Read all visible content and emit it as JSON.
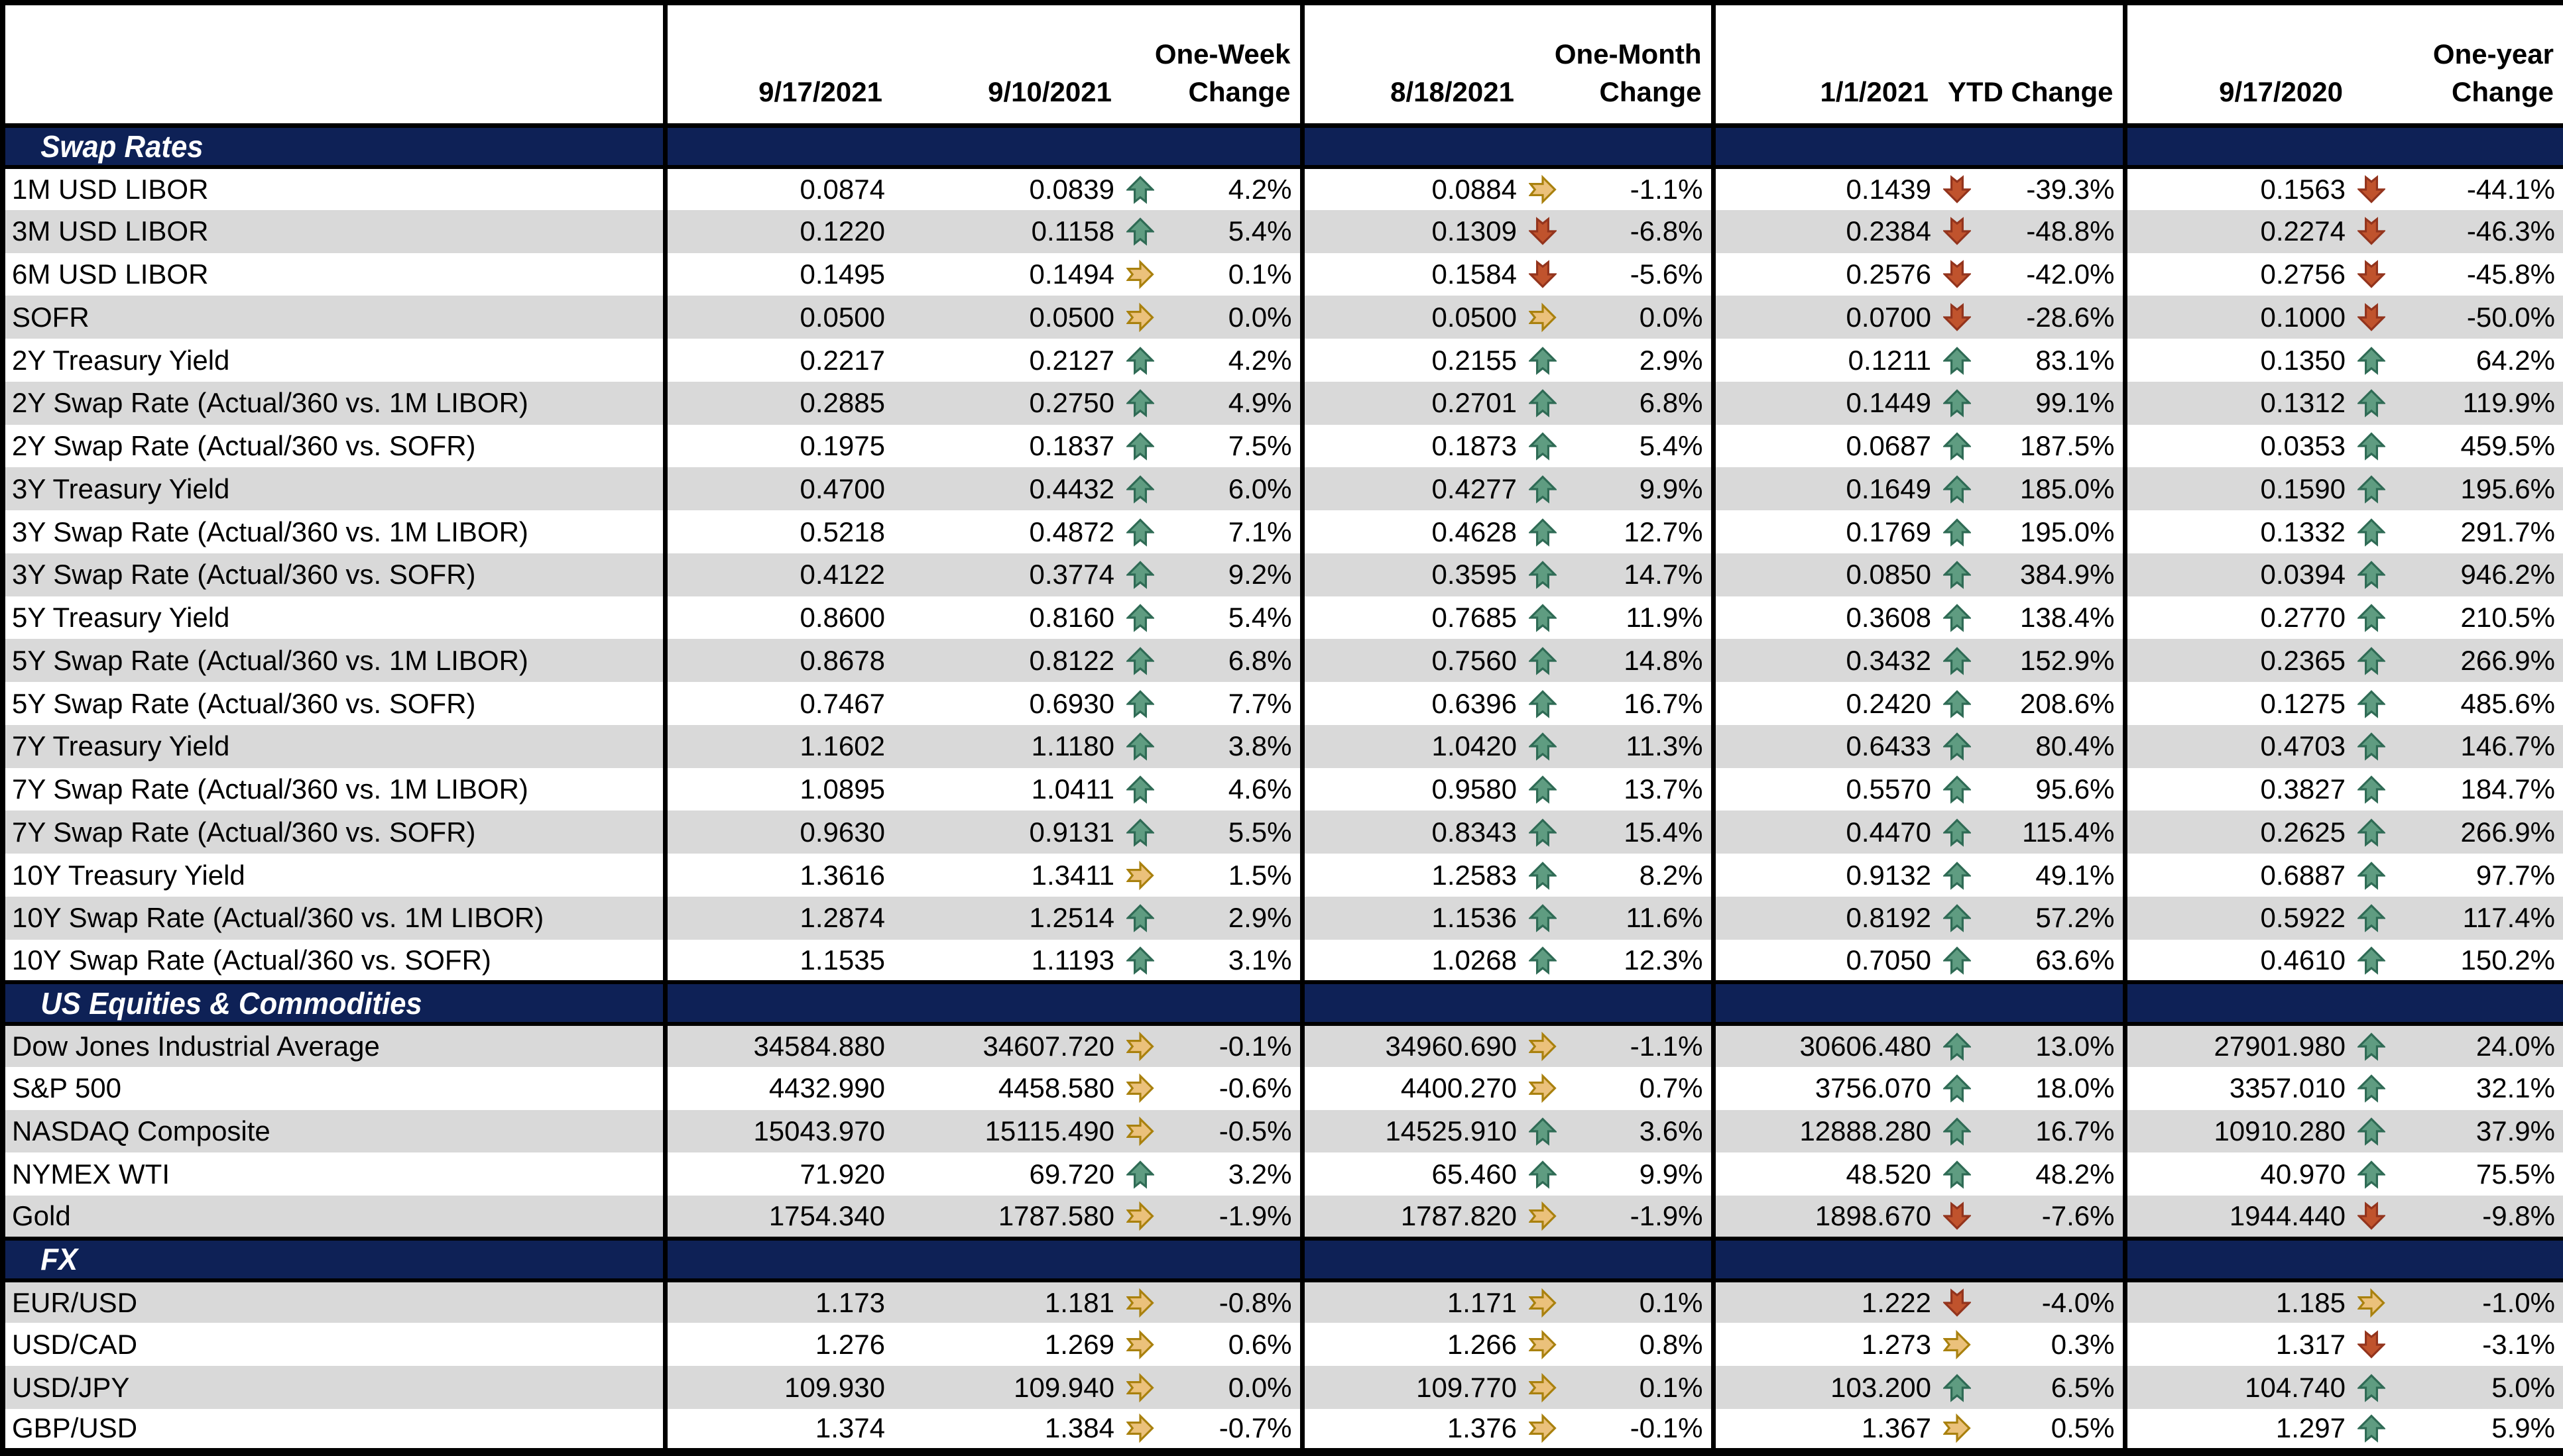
{
  "colors": {
    "section_band": "#0E2156",
    "row_stripe": "#D9D9D9",
    "row_plain": "#FFFFFF",
    "border": "#000000",
    "up_arrow_fill": "#5F9C81",
    "up_arrow_border": "#2F6B55",
    "flat_arrow_fill": "#EBC17B",
    "flat_arrow_border": "#A9810E",
    "down_arrow_fill": "#C0532D",
    "down_arrow_border": "#93341D"
  },
  "icons": {
    "up": "up-arrow-icon",
    "flat": "right-arrow-icon",
    "down": "down-arrow-icon"
  },
  "chart_data": {
    "type": "table",
    "columns": [
      "",
      "9/17/2021",
      "9/10/2021",
      "One-Week Change",
      "8/18/2021",
      "One-Month Change",
      "1/1/2021",
      "YTD Change",
      "9/17/2020",
      "One-year Change"
    ],
    "sections": [
      {
        "title": "Swap Rates",
        "shade_first": "white",
        "rows": [
          {
            "label": "1M USD LIBOR",
            "values": [
              "0.0874",
              "0.0839",
              "0.0884",
              "0.1439",
              "0.1563"
            ],
            "changes": [
              {
                "icon": "up",
                "pct": "4.2%"
              },
              {
                "icon": "flat",
                "pct": "-1.1%"
              },
              {
                "icon": "down",
                "pct": "-39.3%"
              },
              {
                "icon": "down",
                "pct": "-44.1%"
              }
            ]
          },
          {
            "label": "3M USD LIBOR",
            "values": [
              "0.1220",
              "0.1158",
              "0.1309",
              "0.2384",
              "0.2274"
            ],
            "changes": [
              {
                "icon": "up",
                "pct": "5.4%"
              },
              {
                "icon": "down",
                "pct": "-6.8%"
              },
              {
                "icon": "down",
                "pct": "-48.8%"
              },
              {
                "icon": "down",
                "pct": "-46.3%"
              }
            ]
          },
          {
            "label": "6M USD LIBOR",
            "values": [
              "0.1495",
              "0.1494",
              "0.1584",
              "0.2576",
              "0.2756"
            ],
            "changes": [
              {
                "icon": "flat",
                "pct": "0.1%"
              },
              {
                "icon": "down",
                "pct": "-5.6%"
              },
              {
                "icon": "down",
                "pct": "-42.0%"
              },
              {
                "icon": "down",
                "pct": "-45.8%"
              }
            ]
          },
          {
            "label": "SOFR",
            "values": [
              "0.0500",
              "0.0500",
              "0.0500",
              "0.0700",
              "0.1000"
            ],
            "changes": [
              {
                "icon": "flat",
                "pct": "0.0%"
              },
              {
                "icon": "flat",
                "pct": "0.0%"
              },
              {
                "icon": "down",
                "pct": "-28.6%"
              },
              {
                "icon": "down",
                "pct": "-50.0%"
              }
            ]
          },
          {
            "label": "2Y Treasury Yield",
            "values": [
              "0.2217",
              "0.2127",
              "0.2155",
              "0.1211",
              "0.1350"
            ],
            "changes": [
              {
                "icon": "up",
                "pct": "4.2%"
              },
              {
                "icon": "up",
                "pct": "2.9%"
              },
              {
                "icon": "up",
                "pct": "83.1%"
              },
              {
                "icon": "up",
                "pct": "64.2%"
              }
            ]
          },
          {
            "label": "2Y Swap Rate (Actual/360 vs. 1M LIBOR)",
            "values": [
              "0.2885",
              "0.2750",
              "0.2701",
              "0.1449",
              "0.1312"
            ],
            "changes": [
              {
                "icon": "up",
                "pct": "4.9%"
              },
              {
                "icon": "up",
                "pct": "6.8%"
              },
              {
                "icon": "up",
                "pct": "99.1%"
              },
              {
                "icon": "up",
                "pct": "119.9%"
              }
            ]
          },
          {
            "label": "2Y Swap Rate (Actual/360 vs. SOFR)",
            "values": [
              "0.1975",
              "0.1837",
              "0.1873",
              "0.0687",
              "0.0353"
            ],
            "changes": [
              {
                "icon": "up",
                "pct": "7.5%"
              },
              {
                "icon": "up",
                "pct": "5.4%"
              },
              {
                "icon": "up",
                "pct": "187.5%"
              },
              {
                "icon": "up",
                "pct": "459.5%"
              }
            ]
          },
          {
            "label": "3Y Treasury Yield",
            "values": [
              "0.4700",
              "0.4432",
              "0.4277",
              "0.1649",
              "0.1590"
            ],
            "changes": [
              {
                "icon": "up",
                "pct": "6.0%"
              },
              {
                "icon": "up",
                "pct": "9.9%"
              },
              {
                "icon": "up",
                "pct": "185.0%"
              },
              {
                "icon": "up",
                "pct": "195.6%"
              }
            ]
          },
          {
            "label": "3Y Swap Rate (Actual/360 vs. 1M LIBOR)",
            "values": [
              "0.5218",
              "0.4872",
              "0.4628",
              "0.1769",
              "0.1332"
            ],
            "changes": [
              {
                "icon": "up",
                "pct": "7.1%"
              },
              {
                "icon": "up",
                "pct": "12.7%"
              },
              {
                "icon": "up",
                "pct": "195.0%"
              },
              {
                "icon": "up",
                "pct": "291.7%"
              }
            ]
          },
          {
            "label": "3Y Swap Rate (Actual/360 vs. SOFR)",
            "values": [
              "0.4122",
              "0.3774",
              "0.3595",
              "0.0850",
              "0.0394"
            ],
            "changes": [
              {
                "icon": "up",
                "pct": "9.2%"
              },
              {
                "icon": "up",
                "pct": "14.7%"
              },
              {
                "icon": "up",
                "pct": "384.9%"
              },
              {
                "icon": "up",
                "pct": "946.2%"
              }
            ]
          },
          {
            "label": "5Y Treasury Yield",
            "values": [
              "0.8600",
              "0.8160",
              "0.7685",
              "0.3608",
              "0.2770"
            ],
            "changes": [
              {
                "icon": "up",
                "pct": "5.4%"
              },
              {
                "icon": "up",
                "pct": "11.9%"
              },
              {
                "icon": "up",
                "pct": "138.4%"
              },
              {
                "icon": "up",
                "pct": "210.5%"
              }
            ]
          },
          {
            "label": "5Y Swap Rate (Actual/360 vs. 1M LIBOR)",
            "values": [
              "0.8678",
              "0.8122",
              "0.7560",
              "0.3432",
              "0.2365"
            ],
            "changes": [
              {
                "icon": "up",
                "pct": "6.8%"
              },
              {
                "icon": "up",
                "pct": "14.8%"
              },
              {
                "icon": "up",
                "pct": "152.9%"
              },
              {
                "icon": "up",
                "pct": "266.9%"
              }
            ]
          },
          {
            "label": "5Y Swap Rate (Actual/360 vs. SOFR)",
            "values": [
              "0.7467",
              "0.6930",
              "0.6396",
              "0.2420",
              "0.1275"
            ],
            "changes": [
              {
                "icon": "up",
                "pct": "7.7%"
              },
              {
                "icon": "up",
                "pct": "16.7%"
              },
              {
                "icon": "up",
                "pct": "208.6%"
              },
              {
                "icon": "up",
                "pct": "485.6%"
              }
            ]
          },
          {
            "label": "7Y Treasury Yield",
            "values": [
              "1.1602",
              "1.1180",
              "1.0420",
              "0.6433",
              "0.4703"
            ],
            "changes": [
              {
                "icon": "up",
                "pct": "3.8%"
              },
              {
                "icon": "up",
                "pct": "11.3%"
              },
              {
                "icon": "up",
                "pct": "80.4%"
              },
              {
                "icon": "up",
                "pct": "146.7%"
              }
            ]
          },
          {
            "label": "7Y Swap Rate (Actual/360 vs. 1M LIBOR)",
            "values": [
              "1.0895",
              "1.0411",
              "0.9580",
              "0.5570",
              "0.3827"
            ],
            "changes": [
              {
                "icon": "up",
                "pct": "4.6%"
              },
              {
                "icon": "up",
                "pct": "13.7%"
              },
              {
                "icon": "up",
                "pct": "95.6%"
              },
              {
                "icon": "up",
                "pct": "184.7%"
              }
            ]
          },
          {
            "label": "7Y Swap Rate (Actual/360 vs. SOFR)",
            "values": [
              "0.9630",
              "0.9131",
              "0.8343",
              "0.4470",
              "0.2625"
            ],
            "changes": [
              {
                "icon": "up",
                "pct": "5.5%"
              },
              {
                "icon": "up",
                "pct": "15.4%"
              },
              {
                "icon": "up",
                "pct": "115.4%"
              },
              {
                "icon": "up",
                "pct": "266.9%"
              }
            ]
          },
          {
            "label": "10Y Treasury Yield",
            "values": [
              "1.3616",
              "1.3411",
              "1.2583",
              "0.9132",
              "0.6887"
            ],
            "changes": [
              {
                "icon": "flat",
                "pct": "1.5%"
              },
              {
                "icon": "up",
                "pct": "8.2%"
              },
              {
                "icon": "up",
                "pct": "49.1%"
              },
              {
                "icon": "up",
                "pct": "97.7%"
              }
            ]
          },
          {
            "label": "10Y Swap Rate (Actual/360 vs. 1M LIBOR)",
            "values": [
              "1.2874",
              "1.2514",
              "1.1536",
              "0.8192",
              "0.5922"
            ],
            "changes": [
              {
                "icon": "up",
                "pct": "2.9%"
              },
              {
                "icon": "up",
                "pct": "11.6%"
              },
              {
                "icon": "up",
                "pct": "57.2%"
              },
              {
                "icon": "up",
                "pct": "117.4%"
              }
            ]
          },
          {
            "label": "10Y Swap Rate (Actual/360 vs. SOFR)",
            "values": [
              "1.1535",
              "1.1193",
              "1.0268",
              "0.7050",
              "0.4610"
            ],
            "changes": [
              {
                "icon": "up",
                "pct": "3.1%"
              },
              {
                "icon": "up",
                "pct": "12.3%"
              },
              {
                "icon": "up",
                "pct": "63.6%"
              },
              {
                "icon": "up",
                "pct": "150.2%"
              }
            ]
          }
        ]
      },
      {
        "title": "US Equities & Commodities",
        "shade_first": "gray",
        "rows": [
          {
            "label": "Dow Jones Industrial Average",
            "values": [
              "34584.880",
              "34607.720",
              "34960.690",
              "30606.480",
              "27901.980"
            ],
            "changes": [
              {
                "icon": "flat",
                "pct": "-0.1%"
              },
              {
                "icon": "flat",
                "pct": "-1.1%"
              },
              {
                "icon": "up",
                "pct": "13.0%"
              },
              {
                "icon": "up",
                "pct": "24.0%"
              }
            ]
          },
          {
            "label": "S&P 500",
            "values": [
              "4432.990",
              "4458.580",
              "4400.270",
              "3756.070",
              "3357.010"
            ],
            "changes": [
              {
                "icon": "flat",
                "pct": "-0.6%"
              },
              {
                "icon": "flat",
                "pct": "0.7%"
              },
              {
                "icon": "up",
                "pct": "18.0%"
              },
              {
                "icon": "up",
                "pct": "32.1%"
              }
            ]
          },
          {
            "label": "NASDAQ Composite",
            "values": [
              "15043.970",
              "15115.490",
              "14525.910",
              "12888.280",
              "10910.280"
            ],
            "changes": [
              {
                "icon": "flat",
                "pct": "-0.5%"
              },
              {
                "icon": "up",
                "pct": "3.6%"
              },
              {
                "icon": "up",
                "pct": "16.7%"
              },
              {
                "icon": "up",
                "pct": "37.9%"
              }
            ]
          },
          {
            "label": "NYMEX WTI",
            "values": [
              "71.920",
              "69.720",
              "65.460",
              "48.520",
              "40.970"
            ],
            "changes": [
              {
                "icon": "up",
                "pct": "3.2%"
              },
              {
                "icon": "up",
                "pct": "9.9%"
              },
              {
                "icon": "up",
                "pct": "48.2%"
              },
              {
                "icon": "up",
                "pct": "75.5%"
              }
            ]
          },
          {
            "label": "Gold",
            "values": [
              "1754.340",
              "1787.580",
              "1787.820",
              "1898.670",
              "1944.440"
            ],
            "changes": [
              {
                "icon": "flat",
                "pct": "-1.9%"
              },
              {
                "icon": "flat",
                "pct": "-1.9%"
              },
              {
                "icon": "down",
                "pct": "-7.6%"
              },
              {
                "icon": "down",
                "pct": "-9.8%"
              }
            ]
          }
        ]
      },
      {
        "title": "FX",
        "shade_first": "gray",
        "rows": [
          {
            "label": "EUR/USD",
            "values": [
              "1.173",
              "1.181",
              "1.171",
              "1.222",
              "1.185"
            ],
            "changes": [
              {
                "icon": "flat",
                "pct": "-0.8%"
              },
              {
                "icon": "flat",
                "pct": "0.1%"
              },
              {
                "icon": "down",
                "pct": "-4.0%"
              },
              {
                "icon": "flat",
                "pct": "-1.0%"
              }
            ]
          },
          {
            "label": "USD/CAD",
            "values": [
              "1.276",
              "1.269",
              "1.266",
              "1.273",
              "1.317"
            ],
            "changes": [
              {
                "icon": "flat",
                "pct": "0.6%"
              },
              {
                "icon": "flat",
                "pct": "0.8%"
              },
              {
                "icon": "flat",
                "pct": "0.3%"
              },
              {
                "icon": "down",
                "pct": "-3.1%"
              }
            ]
          },
          {
            "label": "USD/JPY",
            "values": [
              "109.930",
              "109.940",
              "109.770",
              "103.200",
              "104.740"
            ],
            "changes": [
              {
                "icon": "flat",
                "pct": "0.0%"
              },
              {
                "icon": "flat",
                "pct": "0.1%"
              },
              {
                "icon": "up",
                "pct": "6.5%"
              },
              {
                "icon": "up",
                "pct": "5.0%"
              }
            ]
          },
          {
            "label": "GBP/USD",
            "values": [
              "1.374",
              "1.384",
              "1.376",
              "1.367",
              "1.297"
            ],
            "changes": [
              {
                "icon": "flat",
                "pct": "-0.7%"
              },
              {
                "icon": "flat",
                "pct": "-0.1%"
              },
              {
                "icon": "flat",
                "pct": "0.5%"
              },
              {
                "icon": "up",
                "pct": "5.9%"
              }
            ]
          }
        ]
      }
    ]
  }
}
